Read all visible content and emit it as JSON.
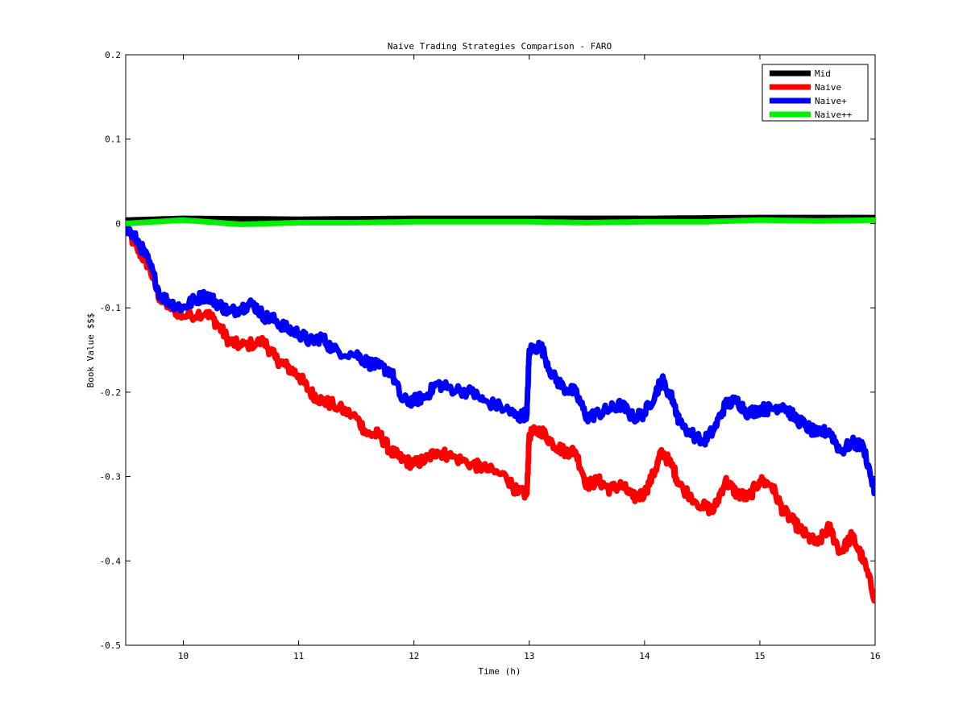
{
  "chart_data": {
    "type": "line",
    "title": "Naive Trading Strategies Comparison - FARO",
    "xlabel": "Time (h)",
    "ylabel": "Book Value $$$",
    "xlim": [
      9.5,
      16
    ],
    "ylim": [
      -0.5,
      0.2
    ],
    "xticks": [
      10,
      11,
      12,
      13,
      14,
      15,
      16
    ],
    "yticks": [
      -0.5,
      -0.4,
      -0.3,
      -0.2,
      -0.1,
      0,
      0.1,
      0.2
    ],
    "xtick_labels": [
      "10",
      "11",
      "12",
      "13",
      "14",
      "15",
      "16"
    ],
    "ytick_labels": [
      "-0.5",
      "-0.4",
      "-0.3",
      "-0.2",
      "-0.1",
      "0",
      "0.1",
      "0.2"
    ],
    "grid": false,
    "legend_position": "top-right",
    "series": [
      {
        "name": "Mid",
        "color": "#000000",
        "x": [
          9.5,
          10,
          11,
          12,
          13,
          14,
          15,
          16
        ],
        "y": [
          0.004,
          0.006,
          0.005,
          0.006,
          0.006,
          0.006,
          0.007,
          0.007
        ]
      },
      {
        "name": "Naive",
        "color": "#ff0000",
        "x": [
          9.5,
          9.6,
          9.7,
          9.8,
          9.9,
          10.0,
          10.2,
          10.3,
          10.4,
          10.5,
          10.7,
          10.8,
          10.9,
          11.0,
          11.1,
          11.2,
          11.3,
          11.5,
          11.6,
          11.7,
          11.8,
          11.9,
          12.0,
          12.1,
          12.2,
          12.3,
          12.5,
          12.6,
          12.8,
          12.9,
          12.98,
          13.0,
          13.1,
          13.2,
          13.3,
          13.4,
          13.5,
          13.6,
          13.7,
          13.8,
          13.9,
          14.0,
          14.1,
          14.15,
          14.25,
          14.3,
          14.5,
          14.6,
          14.7,
          14.8,
          14.9,
          15.0,
          15.1,
          15.2,
          15.3,
          15.4,
          15.5,
          15.6,
          15.7,
          15.8,
          15.9,
          16.0
        ],
        "y": [
          -0.005,
          -0.03,
          -0.05,
          -0.09,
          -0.1,
          -0.11,
          -0.105,
          -0.12,
          -0.14,
          -0.145,
          -0.14,
          -0.16,
          -0.17,
          -0.18,
          -0.2,
          -0.21,
          -0.215,
          -0.23,
          -0.25,
          -0.25,
          -0.27,
          -0.28,
          -0.285,
          -0.28,
          -0.27,
          -0.275,
          -0.285,
          -0.29,
          -0.3,
          -0.32,
          -0.32,
          -0.25,
          -0.245,
          -0.26,
          -0.27,
          -0.27,
          -0.31,
          -0.305,
          -0.315,
          -0.31,
          -0.325,
          -0.32,
          -0.29,
          -0.27,
          -0.29,
          -0.31,
          -0.335,
          -0.34,
          -0.305,
          -0.32,
          -0.325,
          -0.305,
          -0.31,
          -0.34,
          -0.355,
          -0.37,
          -0.38,
          -0.36,
          -0.39,
          -0.37,
          -0.4,
          -0.445
        ]
      },
      {
        "name": "Naive+",
        "color": "#0000ff",
        "x": [
          9.5,
          9.6,
          9.7,
          9.8,
          9.9,
          10.0,
          10.1,
          10.2,
          10.3,
          10.4,
          10.5,
          10.6,
          10.7,
          10.8,
          10.9,
          11.0,
          11.1,
          11.2,
          11.3,
          11.5,
          11.6,
          11.7,
          11.8,
          11.9,
          12.0,
          12.1,
          12.2,
          12.3,
          12.5,
          12.6,
          12.8,
          12.9,
          12.98,
          13.0,
          13.1,
          13.2,
          13.3,
          13.4,
          13.5,
          13.6,
          13.7,
          13.8,
          13.9,
          14.0,
          14.1,
          14.15,
          14.25,
          14.3,
          14.5,
          14.6,
          14.7,
          14.8,
          14.9,
          15.0,
          15.1,
          15.2,
          15.3,
          15.4,
          15.5,
          15.6,
          15.7,
          15.8,
          15.9,
          16.0
        ],
        "y": [
          -0.005,
          -0.02,
          -0.045,
          -0.085,
          -0.095,
          -0.1,
          -0.09,
          -0.085,
          -0.095,
          -0.105,
          -0.1,
          -0.095,
          -0.11,
          -0.115,
          -0.125,
          -0.13,
          -0.14,
          -0.135,
          -0.15,
          -0.155,
          -0.165,
          -0.17,
          -0.175,
          -0.21,
          -0.21,
          -0.205,
          -0.19,
          -0.195,
          -0.2,
          -0.21,
          -0.22,
          -0.23,
          -0.225,
          -0.15,
          -0.145,
          -0.18,
          -0.195,
          -0.2,
          -0.23,
          -0.225,
          -0.22,
          -0.215,
          -0.23,
          -0.225,
          -0.2,
          -0.185,
          -0.21,
          -0.235,
          -0.26,
          -0.245,
          -0.215,
          -0.21,
          -0.225,
          -0.22,
          -0.22,
          -0.215,
          -0.23,
          -0.24,
          -0.25,
          -0.245,
          -0.27,
          -0.26,
          -0.265,
          -0.32
        ]
      },
      {
        "name": "Naive++",
        "color": "#00ee00",
        "x": [
          9.5,
          10,
          10.5,
          11,
          11.5,
          12,
          12.5,
          13,
          13.5,
          14,
          14.5,
          15,
          15.5,
          16
        ],
        "y": [
          0.0,
          0.004,
          -0.001,
          0.001,
          0.001,
          0.002,
          0.002,
          0.002,
          0.001,
          0.002,
          0.002,
          0.004,
          0.003,
          0.004
        ]
      }
    ]
  }
}
